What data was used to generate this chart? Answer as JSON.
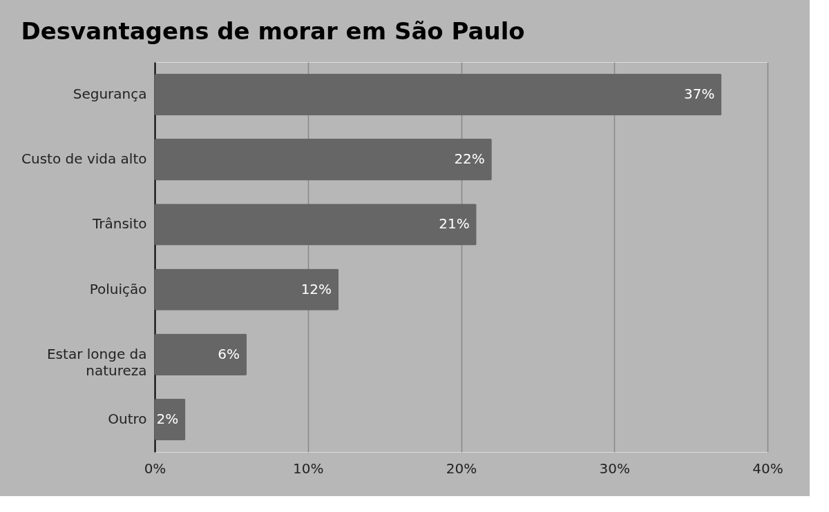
{
  "chart_data": {
    "type": "bar",
    "orientation": "horizontal",
    "title": "Desvantagens de morar em São Paulo",
    "categories": [
      "Segurança",
      "Custo de vida alto",
      "Trânsito",
      "Poluição",
      "Estar longe da natureza",
      "Outro"
    ],
    "values": [
      37,
      22,
      21,
      12,
      6,
      2
    ],
    "value_labels": [
      "37%",
      "22%",
      "21%",
      "12%",
      "6%",
      "2%"
    ],
    "color": "#666666",
    "xlim": [
      0,
      40
    ],
    "xticks": [
      {
        "value": 0,
        "label": "0%"
      },
      {
        "value": 10,
        "label": "10%"
      },
      {
        "value": 20,
        "label": "20%"
      },
      {
        "value": 30,
        "label": "30%"
      },
      {
        "value": 40,
        "label": "40%"
      }
    ],
    "grid": "x"
  }
}
